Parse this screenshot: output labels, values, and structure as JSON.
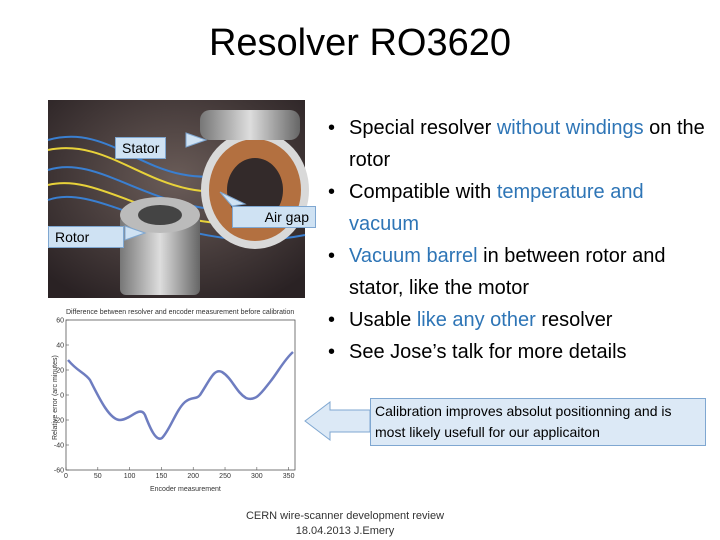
{
  "title": "Resolver RO3620",
  "bullets": [
    [
      {
        "text": "Special resolver "
      },
      {
        "text": "without windings",
        "color": "#2e75b6"
      },
      {
        "text": " on the rotor"
      }
    ],
    [
      {
        "text": "Compatible with "
      },
      {
        "text": "temperature and vacuum",
        "color": "#2e75b6"
      }
    ],
    [
      {
        "text": "Vacuum barrel",
        "color": "#2e75b6"
      },
      {
        "text": " in between rotor and stator, like the motor"
      }
    ],
    [
      {
        "text": "Usable "
      },
      {
        "text": "like any other",
        "color": "#2e75b6"
      },
      {
        "text": " resolver"
      }
    ],
    [
      {
        "text": "See Jose’s talk for more details"
      }
    ]
  ],
  "photo_labels": {
    "stator": "Stator",
    "rotor": "Rotor",
    "air_gap": "Air gap"
  },
  "plot": {
    "title": "Difference between resolver and encoder measurement before calibration",
    "ylabel": "Relative error (arc minutes)",
    "xlabel": "Encoder measurement",
    "ylim": [
      -60,
      60
    ],
    "yticks": [
      60,
      40,
      20,
      0,
      -20,
      -40,
      -60
    ],
    "xlim": [
      0,
      360
    ],
    "xticks": [
      0,
      50,
      100,
      150,
      200,
      250,
      300,
      350
    ]
  },
  "callout": "Calibration improves absolut positionning and is most likely usefull for our applicaiton",
  "footer": [
    "CERN wire-scanner development review",
    "18.04.2013 J.Emery"
  ]
}
